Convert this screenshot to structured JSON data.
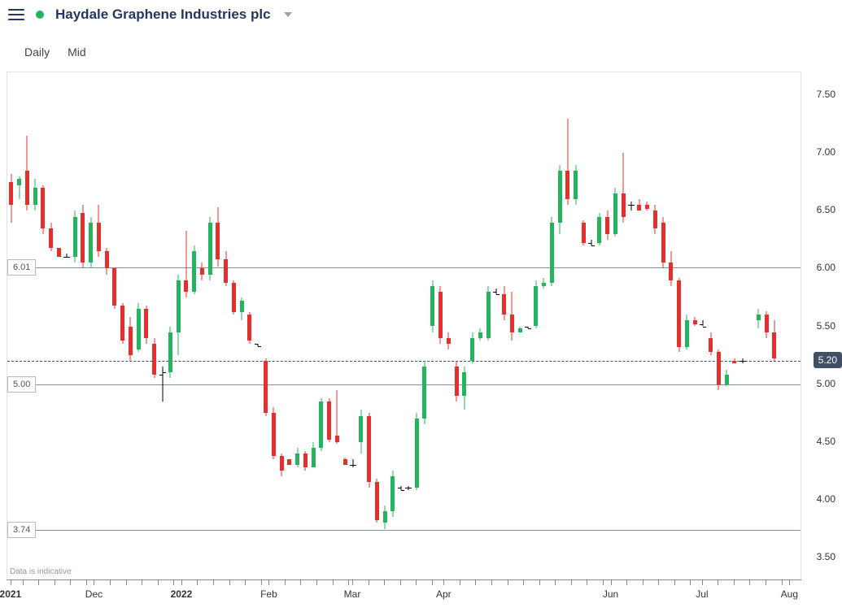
{
  "header": {
    "title": "Haydale Graphene Industries plc",
    "status_color": "#24b35f"
  },
  "toolbar": {
    "interval": "Daily",
    "price_type": "Mid"
  },
  "footnote": "Data is indicative",
  "chart": {
    "type": "candlestick",
    "background_color": "#ffffff",
    "grid_color": "#dfe3e8",
    "up_color": "#24b35f",
    "down_color": "#e3302c",
    "doji_color": "#000000",
    "hline_color": "#8a8f96",
    "candle_width": 5,
    "ylim": [
      3.3,
      7.7
    ],
    "ytick_step": 0.5,
    "yticks": [
      3.5,
      4.0,
      4.5,
      5.0,
      5.5,
      6.0,
      6.5,
      7.0,
      7.5
    ],
    "ytick_fontsize": 12,
    "current_price": 5.2,
    "current_marker_bg": "#404e66",
    "hlines": [
      {
        "value": 6.01,
        "label": "6.01"
      },
      {
        "value": 5.0,
        "label": "5.00"
      },
      {
        "value": 3.74,
        "label": "3.74"
      }
    ],
    "x_count": 200,
    "xticks": [
      {
        "pos": 1,
        "label": "2021",
        "bold": true
      },
      {
        "pos": 22,
        "label": "Dec",
        "bold": false
      },
      {
        "pos": 44,
        "label": "2022",
        "bold": true
      },
      {
        "pos": 66,
        "label": "Feb",
        "bold": false
      },
      {
        "pos": 87,
        "label": "Mar",
        "bold": false
      },
      {
        "pos": 110,
        "label": "Apr",
        "bold": false
      },
      {
        "pos": 152,
        "label": "Jun",
        "bold": false
      },
      {
        "pos": 175,
        "label": "Jul",
        "bold": false
      },
      {
        "pos": 197,
        "label": "Aug",
        "bold": false
      }
    ],
    "x_minor_ticks": [
      1,
      4,
      8,
      12,
      16,
      20,
      22,
      26,
      30,
      34,
      38,
      42,
      44,
      48,
      52,
      56,
      60,
      64,
      66,
      70,
      74,
      78,
      82,
      86,
      87,
      91,
      95,
      99,
      103,
      107,
      110,
      114,
      118,
      122,
      126,
      130,
      134,
      138,
      142,
      146,
      150,
      152,
      156,
      160,
      164,
      168,
      172,
      175,
      179,
      183,
      187,
      191,
      195,
      197
    ],
    "candles": [
      {
        "x": 1,
        "o": 6.75,
        "h": 6.82,
        "l": 6.4,
        "c": 6.55
      },
      {
        "x": 3,
        "o": 6.72,
        "h": 6.8,
        "l": 6.6,
        "c": 6.78
      },
      {
        "x": 5,
        "o": 6.85,
        "h": 7.15,
        "l": 6.5,
        "c": 6.55
      },
      {
        "x": 7,
        "o": 6.55,
        "h": 6.78,
        "l": 6.5,
        "c": 6.7
      },
      {
        "x": 9,
        "o": 6.7,
        "h": 6.72,
        "l": 6.3,
        "c": 6.35
      },
      {
        "x": 11,
        "o": 6.35,
        "h": 6.4,
        "l": 6.15,
        "c": 6.18
      },
      {
        "x": 13,
        "o": 6.18,
        "h": 6.18,
        "l": 6.1,
        "c": 6.1
      },
      {
        "x": 15,
        "o": 6.1,
        "h": 6.13,
        "l": 6.1,
        "c": 6.1
      },
      {
        "x": 17,
        "o": 6.1,
        "h": 6.5,
        "l": 6.05,
        "c": 6.45
      },
      {
        "x": 19,
        "o": 6.48,
        "h": 6.55,
        "l": 6.0,
        "c": 6.05
      },
      {
        "x": 21,
        "o": 6.05,
        "h": 6.45,
        "l": 6.0,
        "c": 6.4
      },
      {
        "x": 23,
        "o": 6.4,
        "h": 6.55,
        "l": 6.1,
        "c": 6.15
      },
      {
        "x": 25,
        "o": 6.15,
        "h": 6.18,
        "l": 5.95,
        "c": 6.0
      },
      {
        "x": 27,
        "o": 6.0,
        "h": 6.0,
        "l": 5.65,
        "c": 5.68
      },
      {
        "x": 29,
        "o": 5.68,
        "h": 5.7,
        "l": 5.35,
        "c": 5.38
      },
      {
        "x": 31,
        "o": 5.5,
        "h": 5.58,
        "l": 5.2,
        "c": 5.25
      },
      {
        "x": 33,
        "o": 5.3,
        "h": 5.7,
        "l": 5.28,
        "c": 5.65
      },
      {
        "x": 35,
        "o": 5.65,
        "h": 5.68,
        "l": 5.35,
        "c": 5.4
      },
      {
        "x": 37,
        "o": 5.35,
        "h": 5.4,
        "l": 5.05,
        "c": 5.08
      },
      {
        "x": 39,
        "o": 5.08,
        "h": 5.15,
        "l": 4.85,
        "c": 5.1
      },
      {
        "x": 41,
        "o": 5.1,
        "h": 5.5,
        "l": 5.05,
        "c": 5.45
      },
      {
        "x": 43,
        "o": 5.45,
        "h": 5.95,
        "l": 5.25,
        "c": 5.9
      },
      {
        "x": 45,
        "o": 5.9,
        "h": 6.33,
        "l": 5.75,
        "c": 5.8
      },
      {
        "x": 47,
        "o": 5.8,
        "h": 6.2,
        "l": 5.78,
        "c": 6.15
      },
      {
        "x": 49,
        "o": 6.0,
        "h": 6.05,
        "l": 5.9,
        "c": 5.95
      },
      {
        "x": 51,
        "o": 5.95,
        "h": 6.45,
        "l": 5.9,
        "c": 6.4
      },
      {
        "x": 53,
        "o": 6.4,
        "h": 6.53,
        "l": 6.02,
        "c": 6.08
      },
      {
        "x": 55,
        "o": 6.08,
        "h": 6.15,
        "l": 5.85,
        "c": 5.88
      },
      {
        "x": 57,
        "o": 5.88,
        "h": 5.9,
        "l": 5.6,
        "c": 5.62
      },
      {
        "x": 59,
        "o": 5.62,
        "h": 5.75,
        "l": 5.55,
        "c": 5.72
      },
      {
        "x": 61,
        "o": 5.6,
        "h": 5.62,
        "l": 5.35,
        "c": 5.38
      },
      {
        "x": 63,
        "o": 5.35,
        "h": 5.35,
        "l": 5.33,
        "c": 5.33
      },
      {
        "x": 65,
        "o": 5.2,
        "h": 5.22,
        "l": 4.72,
        "c": 4.75
      },
      {
        "x": 67,
        "o": 4.75,
        "h": 4.8,
        "l": 4.35,
        "c": 4.38
      },
      {
        "x": 69,
        "o": 4.38,
        "h": 4.4,
        "l": 4.2,
        "c": 4.25
      },
      {
        "x": 71,
        "o": 4.35,
        "h": 4.35,
        "l": 4.3,
        "c": 4.3
      },
      {
        "x": 73,
        "o": 4.3,
        "h": 4.45,
        "l": 4.28,
        "c": 4.4
      },
      {
        "x": 75,
        "o": 4.4,
        "h": 4.42,
        "l": 4.25,
        "c": 4.28
      },
      {
        "x": 77,
        "o": 4.28,
        "h": 4.5,
        "l": 4.28,
        "c": 4.45
      },
      {
        "x": 79,
        "o": 4.45,
        "h": 4.88,
        "l": 4.42,
        "c": 4.85
      },
      {
        "x": 81,
        "o": 4.85,
        "h": 4.88,
        "l": 4.5,
        "c": 4.52
      },
      {
        "x": 83,
        "o": 4.55,
        "h": 4.95,
        "l": 4.48,
        "c": 4.5
      },
      {
        "x": 85,
        "o": 4.35,
        "h": 4.36,
        "l": 4.3,
        "c": 4.3
      },
      {
        "x": 87,
        "o": 4.3,
        "h": 4.35,
        "l": 4.28,
        "c": 4.3
      },
      {
        "x": 89,
        "o": 4.5,
        "h": 4.78,
        "l": 4.4,
        "c": 4.72
      },
      {
        "x": 91,
        "o": 4.72,
        "h": 4.75,
        "l": 4.1,
        "c": 4.15
      },
      {
        "x": 93,
        "o": 4.15,
        "h": 4.18,
        "l": 3.8,
        "c": 3.82
      },
      {
        "x": 95,
        "o": 3.8,
        "h": 3.95,
        "l": 3.74,
        "c": 3.9
      },
      {
        "x": 97,
        "o": 3.9,
        "h": 4.25,
        "l": 3.85,
        "c": 4.2
      },
      {
        "x": 99,
        "o": 4.1,
        "h": 4.12,
        "l": 4.08,
        "c": 4.08
      },
      {
        "x": 101,
        "o": 4.1,
        "h": 4.12,
        "l": 4.08,
        "c": 4.1
      },
      {
        "x": 103,
        "o": 4.1,
        "h": 4.75,
        "l": 4.08,
        "c": 4.7
      },
      {
        "x": 105,
        "o": 4.7,
        "h": 5.2,
        "l": 4.65,
        "c": 5.15
      },
      {
        "x": 107,
        "o": 5.5,
        "h": 5.9,
        "l": 5.45,
        "c": 5.85
      },
      {
        "x": 109,
        "o": 5.8,
        "h": 5.85,
        "l": 5.35,
        "c": 5.4
      },
      {
        "x": 111,
        "o": 5.4,
        "h": 5.45,
        "l": 5.3,
        "c": 5.35
      },
      {
        "x": 113,
        "o": 5.15,
        "h": 5.2,
        "l": 4.85,
        "c": 4.9
      },
      {
        "x": 115,
        "o": 4.9,
        "h": 5.15,
        "l": 4.78,
        "c": 5.1
      },
      {
        "x": 117,
        "o": 5.2,
        "h": 5.45,
        "l": 5.18,
        "c": 5.4
      },
      {
        "x": 119,
        "o": 5.4,
        "h": 5.48,
        "l": 5.38,
        "c": 5.45
      },
      {
        "x": 121,
        "o": 5.4,
        "h": 5.85,
        "l": 5.38,
        "c": 5.8
      },
      {
        "x": 123,
        "o": 5.8,
        "h": 5.83,
        "l": 5.78,
        "c": 5.78
      },
      {
        "x": 125,
        "o": 5.78,
        "h": 5.85,
        "l": 5.55,
        "c": 5.6
      },
      {
        "x": 127,
        "o": 5.6,
        "h": 5.8,
        "l": 5.38,
        "c": 5.45
      },
      {
        "x": 129,
        "o": 5.45,
        "h": 5.5,
        "l": 5.45,
        "c": 5.48
      },
      {
        "x": 131,
        "o": 5.5,
        "h": 5.5,
        "l": 5.48,
        "c": 5.48
      },
      {
        "x": 133,
        "o": 5.5,
        "h": 5.9,
        "l": 5.48,
        "c": 5.85
      },
      {
        "x": 135,
        "o": 5.85,
        "h": 5.92,
        "l": 5.83,
        "c": 5.88
      },
      {
        "x": 137,
        "o": 5.88,
        "h": 6.45,
        "l": 5.85,
        "c": 6.4
      },
      {
        "x": 139,
        "o": 6.4,
        "h": 6.9,
        "l": 6.3,
        "c": 6.85
      },
      {
        "x": 141,
        "o": 6.85,
        "h": 7.3,
        "l": 6.55,
        "c": 6.6
      },
      {
        "x": 143,
        "o": 6.6,
        "h": 6.9,
        "l": 6.55,
        "c": 6.85
      },
      {
        "x": 145,
        "o": 6.4,
        "h": 6.42,
        "l": 6.2,
        "c": 6.22
      },
      {
        "x": 147,
        "o": 6.22,
        "h": 6.25,
        "l": 6.2,
        "c": 6.2
      },
      {
        "x": 149,
        "o": 6.22,
        "h": 6.48,
        "l": 6.2,
        "c": 6.45
      },
      {
        "x": 151,
        "o": 6.45,
        "h": 6.5,
        "l": 6.25,
        "c": 6.3
      },
      {
        "x": 153,
        "o": 6.3,
        "h": 6.7,
        "l": 6.28,
        "c": 6.65
      },
      {
        "x": 155,
        "o": 6.65,
        "h": 7.0,
        "l": 6.4,
        "c": 6.45
      },
      {
        "x": 157,
        "o": 6.55,
        "h": 6.58,
        "l": 6.5,
        "c": 6.55
      },
      {
        "x": 159,
        "o": 6.55,
        "h": 6.6,
        "l": 6.5,
        "c": 6.5
      },
      {
        "x": 161,
        "o": 6.55,
        "h": 6.58,
        "l": 6.5,
        "c": 6.52
      },
      {
        "x": 163,
        "o": 6.5,
        "h": 6.55,
        "l": 6.3,
        "c": 6.35
      },
      {
        "x": 165,
        "o": 6.4,
        "h": 6.45,
        "l": 6.0,
        "c": 6.05
      },
      {
        "x": 167,
        "o": 6.05,
        "h": 6.15,
        "l": 5.85,
        "c": 5.9
      },
      {
        "x": 169,
        "o": 5.9,
        "h": 5.92,
        "l": 5.28,
        "c": 5.32
      },
      {
        "x": 171,
        "o": 5.32,
        "h": 5.6,
        "l": 5.3,
        "c": 5.55
      },
      {
        "x": 173,
        "o": 5.55,
        "h": 5.58,
        "l": 5.5,
        "c": 5.52
      },
      {
        "x": 175,
        "o": 5.52,
        "h": 5.55,
        "l": 5.5,
        "c": 5.5
      },
      {
        "x": 177,
        "o": 5.4,
        "h": 5.45,
        "l": 5.25,
        "c": 5.28
      },
      {
        "x": 179,
        "o": 5.28,
        "h": 5.3,
        "l": 4.95,
        "c": 5.0
      },
      {
        "x": 181,
        "o": 5.0,
        "h": 5.12,
        "l": 4.98,
        "c": 5.08
      },
      {
        "x": 183,
        "o": 5.2,
        "h": 5.22,
        "l": 5.18,
        "c": 5.18
      },
      {
        "x": 185,
        "o": 5.2,
        "h": 5.22,
        "l": 5.18,
        "c": 5.2
      },
      {
        "x": 189,
        "o": 5.55,
        "h": 5.65,
        "l": 5.48,
        "c": 5.6
      },
      {
        "x": 191,
        "o": 5.6,
        "h": 5.63,
        "l": 5.4,
        "c": 5.45
      },
      {
        "x": 193,
        "o": 5.45,
        "h": 5.55,
        "l": 5.2,
        "c": 5.22
      }
    ]
  }
}
